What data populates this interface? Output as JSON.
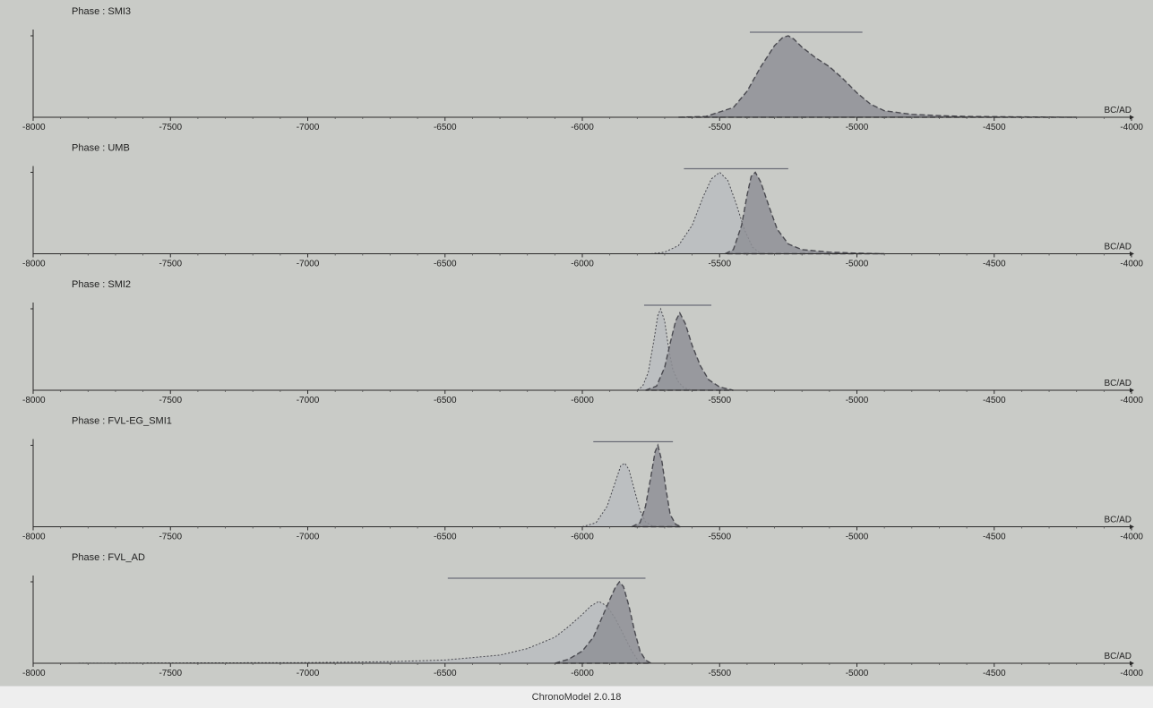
{
  "footer": {
    "app_version": "ChronoModel 2.0.18"
  },
  "colors": {
    "background": "#c9cbc7",
    "begin_fill": "#b9bbbf",
    "end_fill": "#8f9096",
    "curve_line": "#4a4a50",
    "interval_line": "#6c6e78"
  },
  "chart_data": [
    {
      "type": "area",
      "title": "Phase : SMI3",
      "x_unit": "BC/AD",
      "xlim": [
        -8000,
        -4000
      ],
      "x_ticks": [
        -8000,
        -7500,
        -7000,
        -6500,
        -6000,
        -5500,
        -5000,
        -4500,
        -4000
      ],
      "interval": [
        -5390,
        -4980
      ],
      "series": [
        {
          "role": "end",
          "x": [
            -5650,
            -5550,
            -5450,
            -5400,
            -5350,
            -5300,
            -5270,
            -5250,
            -5230,
            -5200,
            -5150,
            -5100,
            -5050,
            -5000,
            -4950,
            -4900,
            -4800,
            -4700,
            -4600,
            -4400,
            -4200
          ],
          "y": [
            0,
            0.01,
            0.12,
            0.32,
            0.62,
            0.88,
            0.98,
            1.0,
            0.96,
            0.86,
            0.73,
            0.62,
            0.47,
            0.3,
            0.16,
            0.08,
            0.035,
            0.02,
            0.01,
            0.004,
            0
          ]
        }
      ]
    },
    {
      "type": "area",
      "title": "Phase : UMB",
      "x_unit": "BC/AD",
      "xlim": [
        -8000,
        -4000
      ],
      "x_ticks": [
        -8000,
        -7500,
        -7000,
        -6500,
        -6000,
        -5500,
        -5000,
        -4500,
        -4000
      ],
      "interval": [
        -5630,
        -5250
      ],
      "series": [
        {
          "role": "begin",
          "x": [
            -5750,
            -5700,
            -5650,
            -5600,
            -5560,
            -5530,
            -5500,
            -5470,
            -5440,
            -5410,
            -5380,
            -5350
          ],
          "y": [
            0,
            0.02,
            0.1,
            0.35,
            0.7,
            0.92,
            1.0,
            0.9,
            0.62,
            0.3,
            0.08,
            0
          ]
        },
        {
          "role": "end",
          "x": [
            -5480,
            -5450,
            -5420,
            -5400,
            -5385,
            -5370,
            -5350,
            -5320,
            -5290,
            -5250,
            -5200,
            -5100,
            -5000,
            -4900
          ],
          "y": [
            0,
            0.05,
            0.35,
            0.72,
            0.95,
            1.0,
            0.88,
            0.58,
            0.3,
            0.12,
            0.05,
            0.02,
            0.008,
            0
          ]
        }
      ]
    },
    {
      "type": "area",
      "title": "Phase : SMI2",
      "x_unit": "BC/AD",
      "xlim": [
        -8000,
        -4000
      ],
      "x_ticks": [
        -8000,
        -7500,
        -7000,
        -6500,
        -6000,
        -5500,
        -5000,
        -4500,
        -4000
      ],
      "interval": [
        -5775,
        -5530
      ],
      "series": [
        {
          "role": "begin",
          "x": [
            -5800,
            -5780,
            -5760,
            -5740,
            -5725,
            -5715,
            -5700,
            -5685,
            -5670,
            -5650,
            -5630,
            -5600
          ],
          "y": [
            0,
            0.05,
            0.22,
            0.6,
            0.92,
            1.0,
            0.85,
            0.5,
            0.25,
            0.1,
            0.03,
            0
          ]
        },
        {
          "role": "end",
          "x": [
            -5770,
            -5730,
            -5700,
            -5680,
            -5660,
            -5645,
            -5625,
            -5600,
            -5570,
            -5540,
            -5500,
            -5450
          ],
          "y": [
            0,
            0.05,
            0.28,
            0.58,
            0.85,
            0.95,
            0.82,
            0.55,
            0.3,
            0.13,
            0.04,
            0
          ]
        }
      ]
    },
    {
      "type": "area",
      "title": "Phase : FVL-EG_SMI1",
      "x_unit": "BC/AD",
      "xlim": [
        -8000,
        -4000
      ],
      "x_ticks": [
        -8000,
        -7500,
        -7000,
        -6500,
        -6000,
        -5500,
        -5000,
        -4500,
        -4000
      ],
      "interval": [
        -5960,
        -5670
      ],
      "series": [
        {
          "role": "begin",
          "x": [
            -6000,
            -5950,
            -5910,
            -5880,
            -5860,
            -5845,
            -5830,
            -5810,
            -5790,
            -5770,
            -5740
          ],
          "y": [
            0,
            0.05,
            0.25,
            0.55,
            0.75,
            0.78,
            0.7,
            0.45,
            0.2,
            0.06,
            0
          ]
        },
        {
          "role": "end",
          "x": [
            -5820,
            -5790,
            -5770,
            -5750,
            -5735,
            -5725,
            -5710,
            -5695,
            -5680,
            -5660,
            -5640
          ],
          "y": [
            0,
            0.05,
            0.25,
            0.62,
            0.92,
            1.0,
            0.8,
            0.45,
            0.15,
            0.03,
            0
          ]
        }
      ]
    },
    {
      "type": "area",
      "title": "Phase : FVL_AD",
      "x_unit": "BC/AD",
      "xlim": [
        -8000,
        -4000
      ],
      "x_ticks": [
        -8000,
        -7500,
        -7000,
        -6500,
        -6000,
        -5500,
        -5000,
        -4500,
        -4000
      ],
      "interval": [
        -6490,
        -5770
      ],
      "series": [
        {
          "role": "begin",
          "x": [
            -7900,
            -7500,
            -7000,
            -6700,
            -6500,
            -6300,
            -6200,
            -6100,
            -6050,
            -6000,
            -5970,
            -5940,
            -5910,
            -5880,
            -5850,
            -5820,
            -5790
          ],
          "y": [
            0,
            0.004,
            0.008,
            0.02,
            0.04,
            0.1,
            0.18,
            0.32,
            0.45,
            0.6,
            0.7,
            0.76,
            0.7,
            0.55,
            0.35,
            0.15,
            0
          ]
        },
        {
          "role": "end",
          "x": [
            -6100,
            -6050,
            -6000,
            -5960,
            -5930,
            -5900,
            -5880,
            -5865,
            -5850,
            -5830,
            -5810,
            -5790,
            -5770,
            -5750
          ],
          "y": [
            0,
            0.05,
            0.15,
            0.32,
            0.55,
            0.78,
            0.93,
            1.0,
            0.94,
            0.7,
            0.4,
            0.15,
            0.04,
            0
          ]
        }
      ]
    }
  ]
}
